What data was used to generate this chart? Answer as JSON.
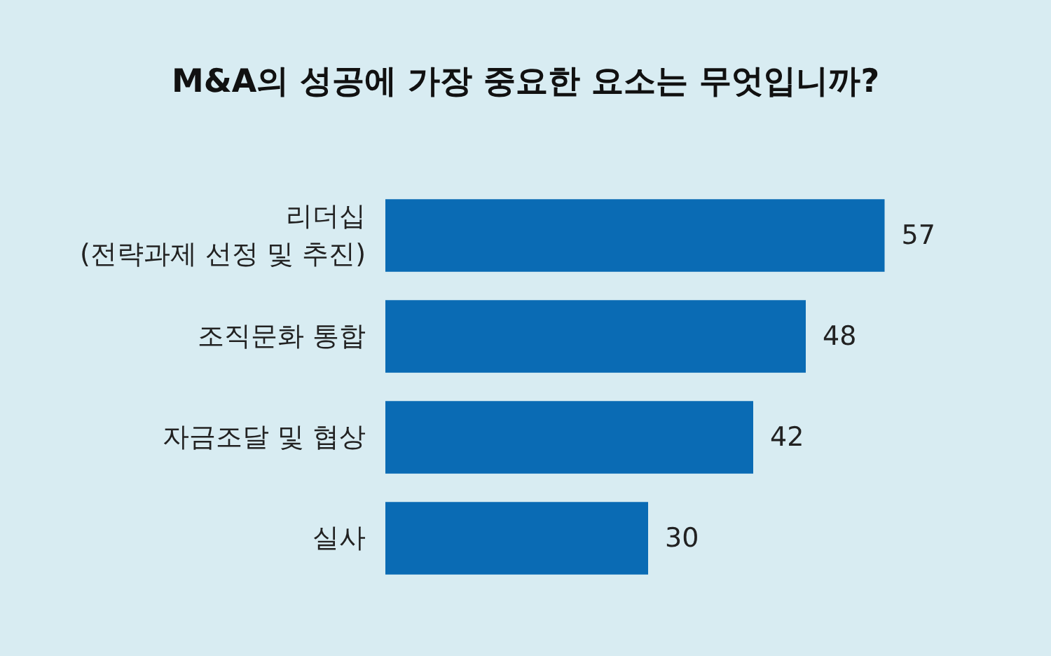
{
  "chart_data": {
    "type": "bar",
    "orientation": "horizontal",
    "title": "M&A의 성공에 가장 중요한 요소는 무엇입니까?",
    "categories": [
      "리더십\n(전략과제 선정 및 추진)",
      "조직문화 통합",
      "자금조달 및 협상",
      "실사"
    ],
    "values": [
      57,
      48,
      42,
      30
    ],
    "color": "#0a6bb4",
    "data_labels": true
  }
}
